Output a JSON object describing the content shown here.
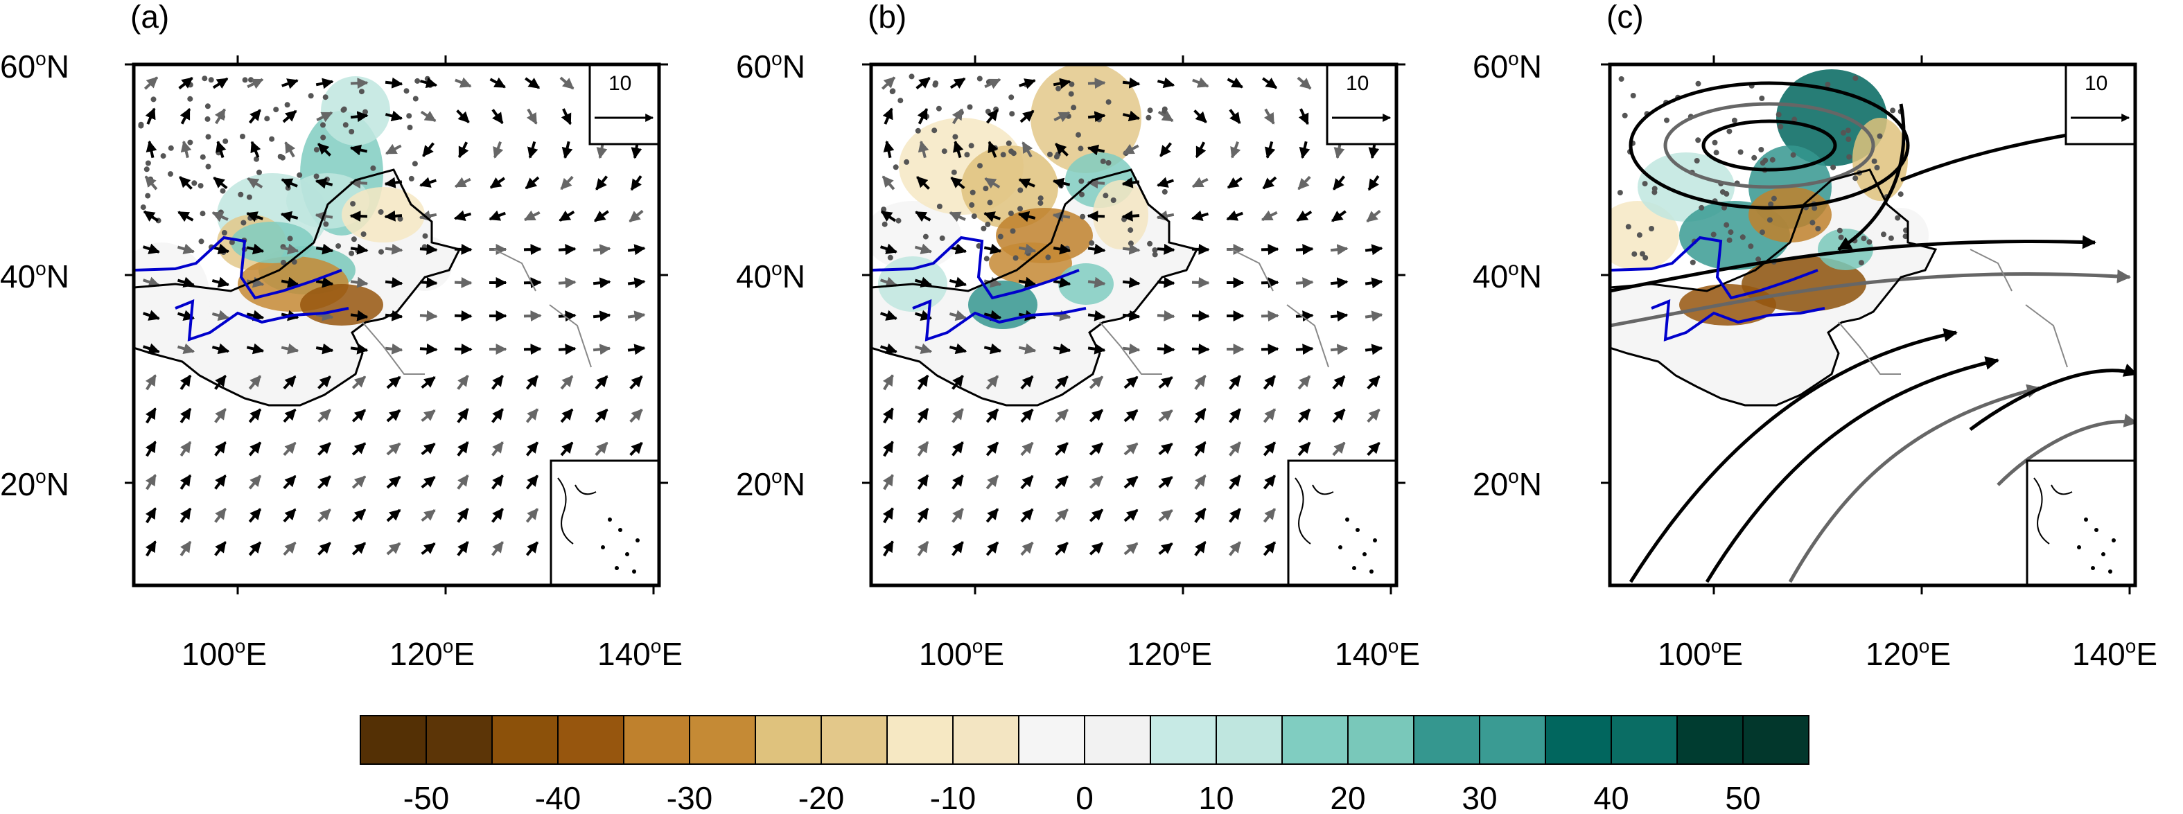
{
  "panels": [
    {
      "id": "a",
      "label": "(a)"
    },
    {
      "id": "b",
      "label": "(b)"
    },
    {
      "id": "c",
      "label": "(c)"
    }
  ],
  "axes": {
    "lon_ticks": [
      {
        "base": "100",
        "sup": "o",
        "hemi": "E"
      },
      {
        "base": "120",
        "sup": "o",
        "hemi": "E"
      },
      {
        "base": "140",
        "sup": "o",
        "hemi": "E"
      }
    ],
    "lat_ticks": [
      {
        "base": "60",
        "sup": "o",
        "hemi": "N"
      },
      {
        "base": "40",
        "sup": "o",
        "hemi": "N"
      },
      {
        "base": "20",
        "sup": "o",
        "hemi": "N"
      }
    ]
  },
  "reference_vector": {
    "label": "10"
  },
  "colorbar": {
    "labels": [
      "-50",
      "-40",
      "-30",
      "-20",
      "-10",
      "0",
      "10",
      "20",
      "30",
      "40",
      "50"
    ],
    "colors": [
      "#543005",
      "#5c3507",
      "#8c510a",
      "#97560e",
      "#bf812d",
      "#c58a35",
      "#dfc27d",
      "#e3c88a",
      "#f6e8c3",
      "#f3e5c2",
      "#f5f5f5",
      "#f2f2f2",
      "#c7eae5",
      "#bfe6df",
      "#80cdc1",
      "#79c8ba",
      "#35978f",
      "#3a9b93",
      "#01665e",
      "#0a6d64",
      "#003c30",
      "#02372c"
    ]
  },
  "colors": {
    "dry": "#bf812d",
    "wet": "#35978f",
    "river": "#0000cc",
    "vector_black": "#000000",
    "vector_gray": "#666666"
  }
}
